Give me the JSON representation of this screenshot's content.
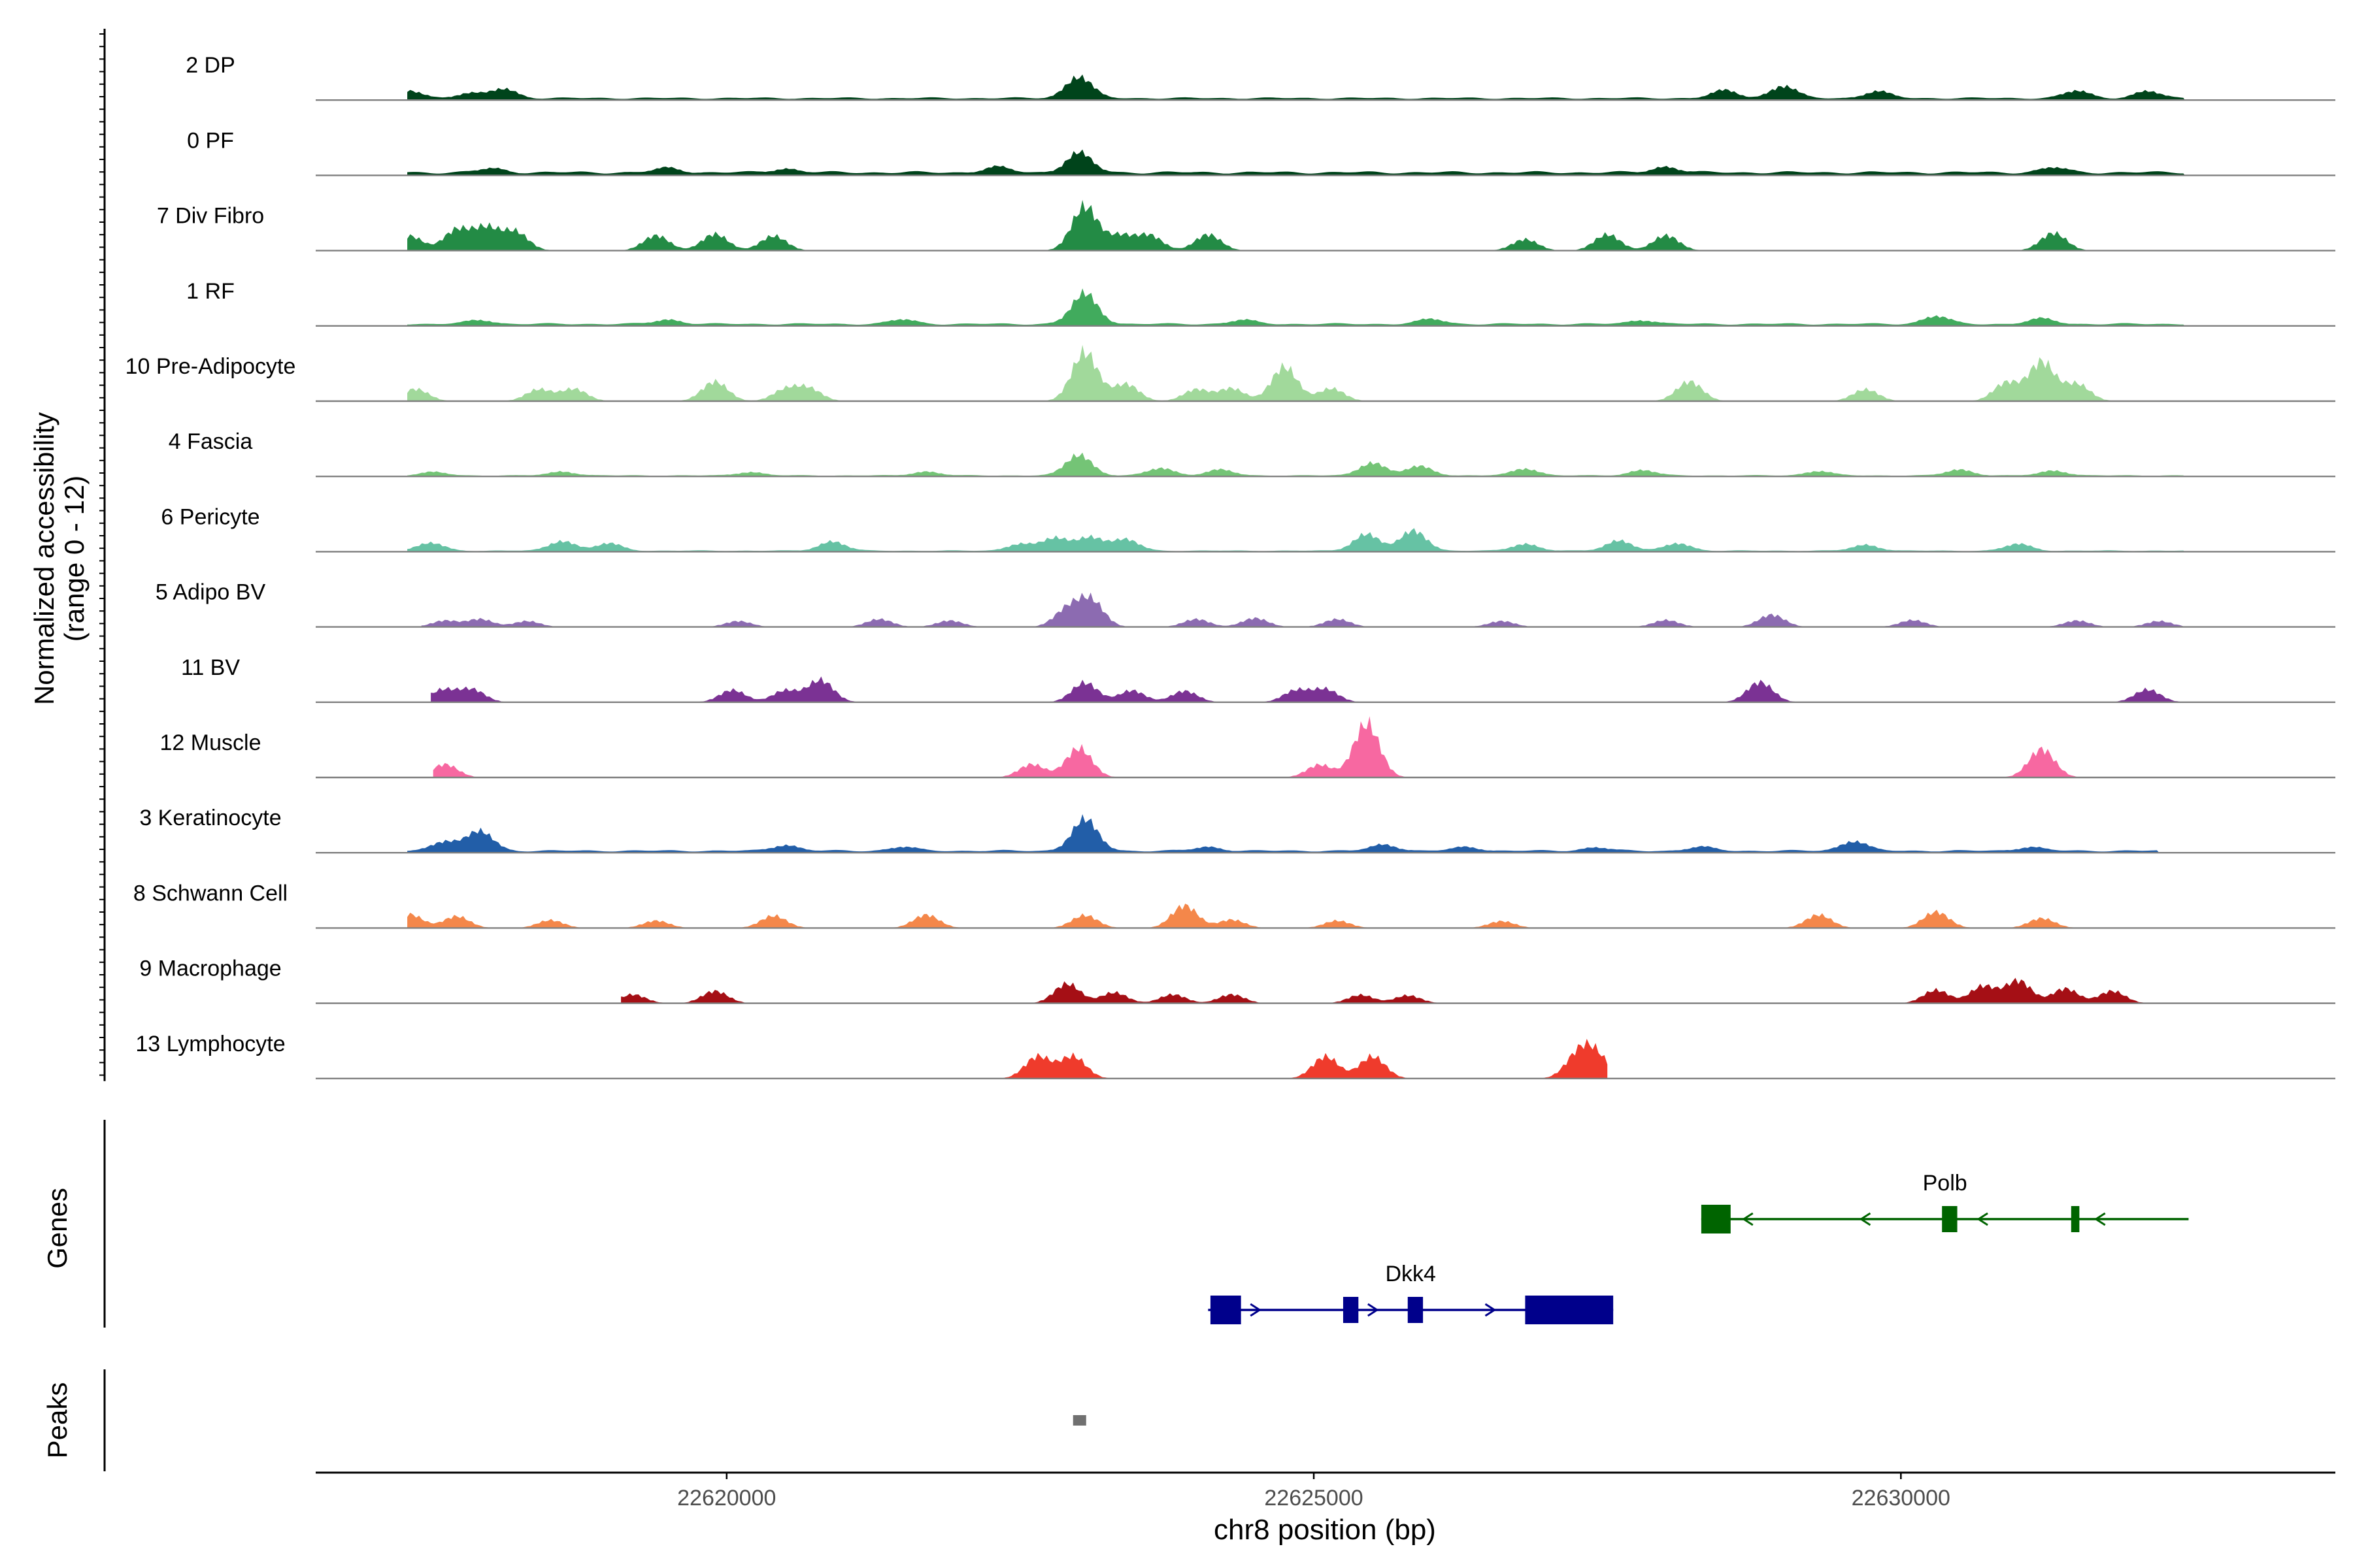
{
  "chart_data": {
    "type": "area",
    "title": "",
    "chromosome": "chr8",
    "xlabel": "chr8 position (bp)",
    "ylabel": "Normalized accessibility",
    "ylabel_range": "(range 0 - 12)",
    "ylim": [
      0,
      12
    ],
    "xlim": [
      22616500,
      22633700
    ],
    "x_ticks": [
      22620000,
      22625000,
      22630000
    ],
    "x_tick_labels": [
      "22620000",
      "22625000",
      "22630000"
    ],
    "genes_label": "Genes",
    "peaks_label": "Peaks",
    "tracks": [
      {
        "name": "2 DP",
        "color": "#00441b",
        "start": 22617280,
        "end": 22632420,
        "baseline": 0.2,
        "peaks": [
          [
            22617300,
            1.5
          ],
          [
            22617800,
            1.0
          ],
          [
            22618100,
            1.9
          ],
          [
            22623000,
            4.4
          ],
          [
            22628500,
            1.6
          ],
          [
            22629000,
            2.5
          ],
          [
            22629800,
            1.4
          ],
          [
            22631500,
            1.5
          ],
          [
            22632100,
            1.4
          ]
        ]
      },
      {
        "name": "0 PF",
        "color": "#00441b",
        "start": 22617280,
        "end": 22632420,
        "baseline": 0.3,
        "peaks": [
          [
            22618000,
            0.8
          ],
          [
            22619500,
            0.9
          ],
          [
            22620500,
            0.8
          ],
          [
            22622300,
            1.1
          ],
          [
            22623000,
            4.0
          ],
          [
            22628000,
            1.2
          ],
          [
            22631300,
            1.0
          ]
        ]
      },
      {
        "name": "7 Div Fibro",
        "color": "#238b45",
        "start": 22617280,
        "end": 22632600,
        "baseline": 0.0,
        "peaks": [
          [
            22617300,
            3.0
          ],
          [
            22617700,
            4.2
          ],
          [
            22617950,
            4.5
          ],
          [
            22618200,
            3.8
          ],
          [
            22619400,
            3.1
          ],
          [
            22619900,
            3.4
          ],
          [
            22620400,
            3.0
          ],
          [
            22623050,
            9.0
          ],
          [
            22623350,
            3.0
          ],
          [
            22623600,
            3.1
          ],
          [
            22624100,
            3.3
          ],
          [
            22626800,
            2.3
          ],
          [
            22627500,
            3.3
          ],
          [
            22628000,
            3.1
          ],
          [
            22631300,
            3.6
          ]
        ]
      },
      {
        "name": "1 RF",
        "color": "#41ab5d",
        "start": 22617280,
        "end": 22632420,
        "baseline": 0.2,
        "peaks": [
          [
            22617900,
            0.8
          ],
          [
            22619500,
            0.9
          ],
          [
            22621500,
            0.9
          ],
          [
            22623050,
            6.2
          ],
          [
            22624400,
            0.8
          ],
          [
            22626000,
            1.0
          ],
          [
            22627800,
            0.8
          ],
          [
            22630300,
            1.6
          ],
          [
            22631200,
            1.1
          ]
        ]
      },
      {
        "name": "10 Pre-Adipocyte",
        "color": "#a1d99b",
        "start": 22617280,
        "end": 22632420,
        "baseline": 0.0,
        "peaks": [
          [
            22617350,
            2.5
          ],
          [
            22618400,
            2.4
          ],
          [
            22618700,
            2.5
          ],
          [
            22619900,
            4.0
          ],
          [
            22620500,
            2.3
          ],
          [
            22620700,
            2.5
          ],
          [
            22623050,
            10.0
          ],
          [
            22623400,
            3.5
          ],
          [
            22624000,
            2.4
          ],
          [
            22624300,
            2.6
          ],
          [
            22624750,
            7.0
          ],
          [
            22625150,
            2.6
          ],
          [
            22628200,
            4.0
          ],
          [
            22629700,
            2.4
          ],
          [
            22630900,
            3.8
          ],
          [
            22631200,
            8.0
          ],
          [
            22631500,
            3.5
          ]
        ]
      },
      {
        "name": "4 Fascia",
        "color": "#74c476",
        "start": 22617280,
        "end": 22632420,
        "baseline": 0.1,
        "peaks": [
          [
            22617500,
            0.7
          ],
          [
            22618600,
            0.8
          ],
          [
            22620200,
            0.7
          ],
          [
            22621700,
            0.8
          ],
          [
            22623000,
            4.2
          ],
          [
            22623700,
            1.5
          ],
          [
            22624200,
            1.2
          ],
          [
            22625500,
            2.6
          ],
          [
            22625900,
            1.9
          ],
          [
            22626800,
            1.4
          ],
          [
            22627800,
            1.1
          ],
          [
            22629300,
            0.9
          ],
          [
            22630500,
            1.2
          ],
          [
            22631300,
            1.0
          ]
        ]
      },
      {
        "name": "6 Pericyte",
        "color": "#66c2a4",
        "start": 22617280,
        "end": 22632420,
        "baseline": 0.1,
        "peaks": [
          [
            22617480,
            1.6
          ],
          [
            22618600,
            2.0
          ],
          [
            22619000,
            1.5
          ],
          [
            22620900,
            1.9
          ],
          [
            22622500,
            1.4
          ],
          [
            22622800,
            2.6
          ],
          [
            22623100,
            2.8
          ],
          [
            22623400,
            2.3
          ],
          [
            22625450,
            3.4
          ],
          [
            22625850,
            4.1
          ],
          [
            22626800,
            1.4
          ],
          [
            22627600,
            2.1
          ],
          [
            22628100,
            1.5
          ],
          [
            22629700,
            1.2
          ],
          [
            22631000,
            1.4
          ]
        ]
      },
      {
        "name": "5 Adipo BV",
        "color": "#8c6bb1",
        "start": 22617400,
        "end": 22632420,
        "baseline": 0.0,
        "peaks": [
          [
            22617600,
            1.3
          ],
          [
            22617900,
            1.6
          ],
          [
            22618300,
            1.2
          ],
          [
            22620100,
            1.2
          ],
          [
            22621300,
            1.6
          ],
          [
            22621900,
            1.3
          ],
          [
            22622900,
            3.5
          ],
          [
            22623100,
            5.4
          ],
          [
            22624000,
            1.6
          ],
          [
            22624500,
            1.8
          ],
          [
            22625200,
            1.6
          ],
          [
            22626600,
            1.2
          ],
          [
            22628000,
            1.4
          ],
          [
            22628900,
            2.5
          ],
          [
            22630100,
            1.4
          ],
          [
            22631500,
            1.3
          ],
          [
            22632200,
            1.2
          ]
        ]
      },
      {
        "name": "11 BV",
        "color": "#7b3294",
        "start": 22617480,
        "end": 22632420,
        "baseline": 0.0,
        "peaks": [
          [
            22617580,
            2.5
          ],
          [
            22617830,
            2.6
          ],
          [
            22620050,
            2.5
          ],
          [
            22620500,
            2.4
          ],
          [
            22620800,
            4.5
          ],
          [
            22623050,
            4.0
          ],
          [
            22623450,
            2.4
          ],
          [
            22623900,
            2.3
          ],
          [
            22624850,
            2.4
          ],
          [
            22625100,
            2.6
          ],
          [
            22628800,
            4.1
          ],
          [
            22632100,
            2.6
          ]
        ]
      },
      {
        "name": "12 Muscle",
        "color": "#f768a1",
        "start": 22617500,
        "end": 22632420,
        "baseline": 0.0,
        "peaks": [
          [
            22617600,
            2.7
          ],
          [
            22622600,
            2.7
          ],
          [
            22623000,
            6.0
          ],
          [
            22625050,
            2.6
          ],
          [
            22625450,
            11.0
          ],
          [
            22631200,
            5.8
          ]
        ]
      },
      {
        "name": "3 Keratinocyte",
        "color": "#225ea8",
        "start": 22617280,
        "end": 22632200,
        "baseline": 0.2,
        "peaks": [
          [
            22617600,
            2.0
          ],
          [
            22617900,
            4.0
          ],
          [
            22620500,
            1.2
          ],
          [
            22621500,
            0.8
          ],
          [
            22623050,
            6.4
          ],
          [
            22624100,
            0.8
          ],
          [
            22625600,
            1.3
          ],
          [
            22626300,
            0.8
          ],
          [
            22627400,
            0.7
          ],
          [
            22628300,
            0.8
          ],
          [
            22629600,
            2.0
          ],
          [
            22631100,
            0.8
          ]
        ]
      },
      {
        "name": "8 Schwann Cell",
        "color": "#f4874a",
        "start": 22617280,
        "end": 22632420,
        "baseline": 0.0,
        "peaks": [
          [
            22617300,
            2.8
          ],
          [
            22617700,
            2.4
          ],
          [
            22618500,
            1.6
          ],
          [
            22619400,
            1.5
          ],
          [
            22620400,
            2.5
          ],
          [
            22621700,
            2.7
          ],
          [
            22623050,
            2.6
          ],
          [
            22623900,
            4.6
          ],
          [
            22624300,
            1.7
          ],
          [
            22625200,
            1.5
          ],
          [
            22626600,
            1.4
          ],
          [
            22629300,
            2.7
          ],
          [
            22630300,
            3.3
          ],
          [
            22631200,
            2.0
          ]
        ]
      },
      {
        "name": "9 Macrophage",
        "color": "#a50f15",
        "start": 22619100,
        "end": 22632420,
        "baseline": 0.0,
        "peaks": [
          [
            22619200,
            1.8
          ],
          [
            22619900,
            2.5
          ],
          [
            22622900,
            4.0
          ],
          [
            22623300,
            2.2
          ],
          [
            22623800,
            1.8
          ],
          [
            22624300,
            1.8
          ],
          [
            22625400,
            1.7
          ],
          [
            22625800,
            1.6
          ],
          [
            22630300,
            2.7
          ],
          [
            22630700,
            3.5
          ],
          [
            22631000,
            4.6
          ],
          [
            22631400,
            3.0
          ],
          [
            22631800,
            2.5
          ]
        ]
      },
      {
        "name": "13 Lymphocyte",
        "color": "#ef3b2c",
        "start": 22622200,
        "end": 22627500,
        "baseline": 0.0,
        "peaks": [
          [
            22622650,
            4.5
          ],
          [
            22622950,
            4.5
          ],
          [
            22625100,
            4.5
          ],
          [
            22625500,
            4.5
          ],
          [
            22627250,
            4.5
          ],
          [
            22627400,
            4.5
          ]
        ]
      }
    ],
    "genes": [
      {
        "name": "Polb",
        "strand": "-",
        "color": "#006400",
        "start": 22628300,
        "end": 22632450,
        "exons": [
          [
            22628300,
            22628550
          ],
          [
            22630350,
            22630480
          ],
          [
            22631450,
            22631520
          ]
        ]
      },
      {
        "name": "Dkk4",
        "strand": "+",
        "color": "#00008b",
        "start": 22624100,
        "end": 22627550,
        "exons": [
          [
            22624120,
            22624380
          ],
          [
            22625250,
            22625380
          ],
          [
            22625800,
            22625930
          ],
          [
            22626800,
            22627550
          ]
        ]
      }
    ],
    "peaks_track": [
      {
        "start": 22622950,
        "end": 22623060,
        "color": "#707070"
      }
    ]
  }
}
